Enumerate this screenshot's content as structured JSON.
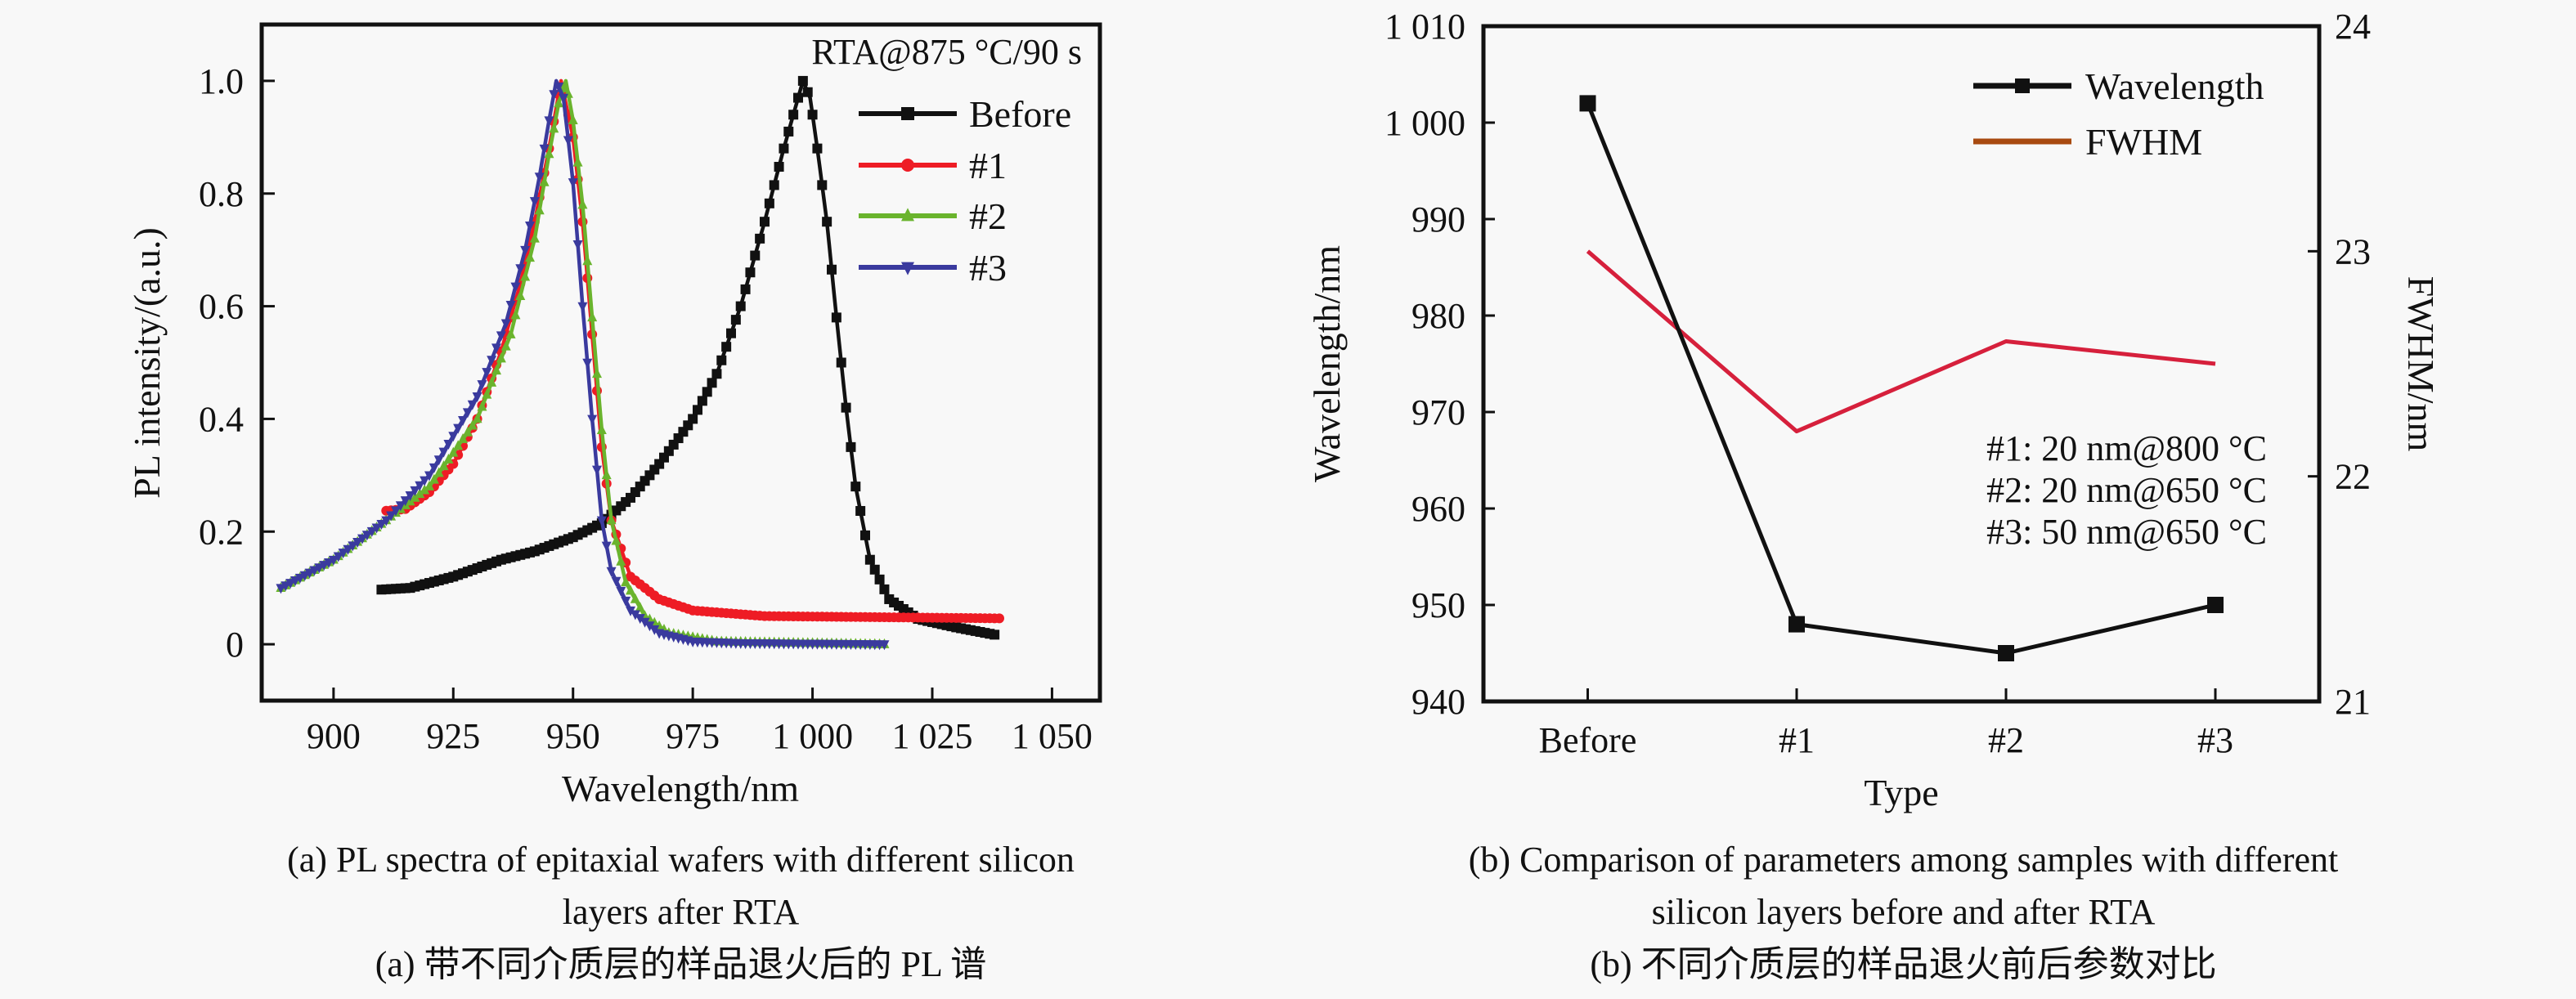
{
  "chart_data": [
    {
      "type": "line",
      "panel": "a",
      "annotation": "RTA@875 °C/90 s",
      "xlabel": "Wavelength/nm",
      "ylabel": "PL intensity/(a.u.)",
      "xlim": [
        885,
        1060
      ],
      "ylim": [
        -0.1,
        1.1
      ],
      "xticks": [
        900,
        925,
        950,
        975,
        1000,
        1025,
        1050
      ],
      "xtick_labels": [
        "900",
        "925",
        "950",
        "975",
        "1 000",
        "1 025",
        "1 050"
      ],
      "yticks": [
        0,
        0.2,
        0.4,
        0.6,
        0.8,
        1.0
      ],
      "ytick_labels": [
        "0",
        "0.2",
        "0.4",
        "0.6",
        "0.8",
        "1.0"
      ],
      "legend_position": "top-right",
      "grid": false,
      "series": [
        {
          "name": "Before",
          "color": "#111111",
          "marker": "square",
          "points": [
            [
              910,
              0.097
            ],
            [
              916,
              0.1
            ],
            [
              925,
              0.12
            ],
            [
              935,
              0.15
            ],
            [
              942,
              0.165
            ],
            [
              950,
              0.19
            ],
            [
              956,
              0.215
            ],
            [
              962,
              0.26
            ],
            [
              968,
              0.32
            ],
            [
              975,
              0.4
            ],
            [
              980,
              0.48
            ],
            [
              985,
              0.6
            ],
            [
              990,
              0.75
            ],
            [
              994,
              0.88
            ],
            [
              997,
              0.97
            ],
            [
              998,
              1.0
            ],
            [
              999.5,
              0.97
            ],
            [
              1001,
              0.88
            ],
            [
              1003,
              0.75
            ],
            [
              1005,
              0.58
            ],
            [
              1007,
              0.42
            ],
            [
              1009,
              0.28
            ],
            [
              1012,
              0.15
            ],
            [
              1016,
              0.08
            ],
            [
              1022,
              0.045
            ],
            [
              1030,
              0.03
            ],
            [
              1038,
              0.017
            ]
          ]
        },
        {
          "name": "#1",
          "color": "#ee1c25",
          "marker": "circle",
          "points": [
            [
              911,
              0.237
            ],
            [
              915,
              0.24
            ],
            [
              920,
              0.27
            ],
            [
              925,
              0.32
            ],
            [
              930,
              0.4
            ],
            [
              935,
              0.52
            ],
            [
              939,
              0.64
            ],
            [
              942,
              0.75
            ],
            [
              945,
              0.88
            ],
            [
              947.5,
              1.0
            ],
            [
              950,
              0.9
            ],
            [
              952,
              0.75
            ],
            [
              954,
              0.55
            ],
            [
              956,
              0.35
            ],
            [
              958,
              0.22
            ],
            [
              962,
              0.12
            ],
            [
              968,
              0.08
            ],
            [
              975,
              0.06
            ],
            [
              990,
              0.05
            ],
            [
              1039,
              0.046
            ]
          ]
        },
        {
          "name": "#2",
          "color": "#6ab42d",
          "marker": "triangle-up",
          "points": [
            [
              889,
              0.1
            ],
            [
              900,
              0.15
            ],
            [
              911,
              0.22
            ],
            [
              920,
              0.28
            ],
            [
              930,
              0.4
            ],
            [
              937,
              0.55
            ],
            [
              942,
              0.72
            ],
            [
              945,
              0.87
            ],
            [
              947,
              0.96
            ],
            [
              948.5,
              1.0
            ],
            [
              950,
              0.93
            ],
            [
              952,
              0.78
            ],
            [
              954,
              0.58
            ],
            [
              956,
              0.38
            ],
            [
              958,
              0.22
            ],
            [
              961,
              0.11
            ],
            [
              965,
              0.05
            ],
            [
              970,
              0.02
            ],
            [
              980,
              0.005
            ],
            [
              1015,
              0.0
            ]
          ]
        },
        {
          "name": "#3",
          "color": "#3a3a9e",
          "marker": "triangle-down",
          "points": [
            [
              889,
              0.1
            ],
            [
              900,
              0.15
            ],
            [
              911,
              0.22
            ],
            [
              920,
              0.3
            ],
            [
              930,
              0.44
            ],
            [
              936,
              0.57
            ],
            [
              940,
              0.7
            ],
            [
              943,
              0.83
            ],
            [
              945,
              0.93
            ],
            [
              946.5,
              1.0
            ],
            [
              948,
              0.97
            ],
            [
              950,
              0.82
            ],
            [
              952,
              0.6
            ],
            [
              954,
              0.4
            ],
            [
              956,
              0.22
            ],
            [
              958,
              0.13
            ],
            [
              962,
              0.06
            ],
            [
              968,
              0.02
            ],
            [
              975,
              0.005
            ],
            [
              985,
              0.002
            ],
            [
              1015,
              0.0
            ]
          ]
        }
      ]
    },
    {
      "type": "line",
      "panel": "b",
      "xlabel": "Type",
      "ylabel": "Wavelength/nm",
      "ylabel_right": "FWHM/nm",
      "categories": [
        "Before",
        "#1",
        "#2",
        "#3"
      ],
      "ylim": [
        940,
        1010
      ],
      "ylim_right": [
        21,
        24
      ],
      "yticks": [
        940,
        950,
        960,
        970,
        980,
        990,
        1000,
        1010
      ],
      "ytick_labels": [
        "940",
        "950",
        "960",
        "970",
        "980",
        "990",
        "1 000",
        "1 010"
      ],
      "yticks_right": [
        21,
        22,
        23,
        24
      ],
      "ytick_labels_right": [
        "21",
        "22",
        "23",
        "24"
      ],
      "legend_position": "top-right",
      "grid": false,
      "annotations": [
        "#1: 20 nm@800 °C",
        "#2: 20 nm@650 °C",
        "#3: 50 nm@650 °C"
      ],
      "series": [
        {
          "name": "Wavelength",
          "axis": "left",
          "color": "#111111",
          "legend_color": "#111111",
          "marker": "square",
          "values": [
            1002,
            948,
            945,
            950
          ]
        },
        {
          "name": "FWHM",
          "axis": "right",
          "color": "#d6203c",
          "legend_color": "#a84a10",
          "marker": "none",
          "values": [
            23.0,
            22.2,
            22.6,
            22.5
          ]
        }
      ]
    }
  ],
  "captions": {
    "a_en": "(a) PL spectra of epitaxial wafers with different silicon layers after RTA",
    "a_en_line1": "(a) PL spectra of epitaxial wafers with different silicon",
    "a_en_line2": "layers after RTA",
    "a_zh": "(a) 带不同介质层的样品退火后的 PL 谱",
    "b_en_line1": "(b) Comparison of parameters among samples with different",
    "b_en_line2": "silicon layers before and after RTA",
    "b_zh": "(b) 不同介质层的样品退火前后参数对比"
  }
}
